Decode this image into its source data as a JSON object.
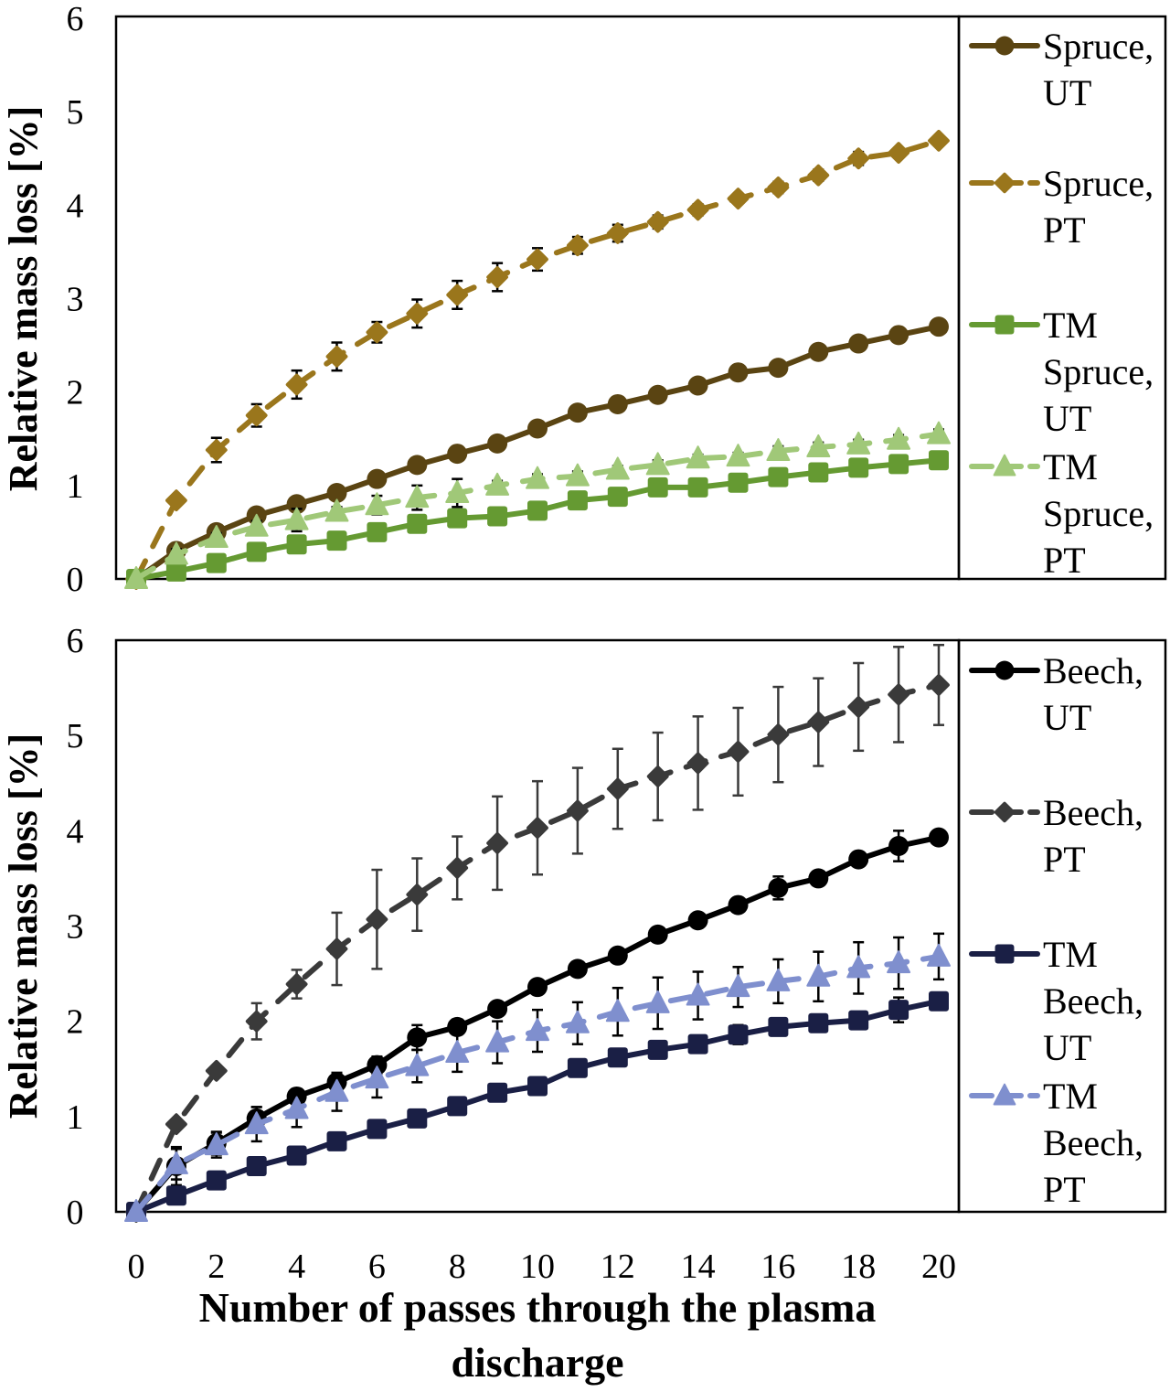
{
  "chart_data": [
    {
      "type": "line",
      "panel": "top",
      "title": "",
      "xlabel": "Number of passes through the plasma discharge",
      "ylabel": "Relative mass loss [%]",
      "xlim": [
        0,
        20
      ],
      "ylim": [
        0,
        6
      ],
      "x_ticks": [
        "0",
        "2",
        "4",
        "6",
        "8",
        "10",
        "12",
        "14",
        "16",
        "18",
        "20"
      ],
      "y_ticks": [
        "0",
        "1",
        "2",
        "3",
        "4",
        "5",
        "6"
      ],
      "grid": false,
      "legend_position": "right",
      "x": [
        0,
        1,
        2,
        3,
        4,
        5,
        6,
        7,
        8,
        9,
        10,
        11,
        12,
        13,
        14,
        15,
        16,
        17,
        18,
        19,
        20
      ],
      "series": [
        {
          "name": "Spruce, UT",
          "legend_lines": [
            "Spruce,",
            "UT"
          ],
          "color": "#5a4412",
          "marker": "circle",
          "dash": "solid",
          "values": [
            0,
            0.3,
            0.5,
            0.68,
            0.8,
            0.92,
            1.07,
            1.22,
            1.34,
            1.45,
            1.61,
            1.78,
            1.87,
            1.97,
            2.07,
            2.21,
            2.26,
            2.43,
            2.52,
            2.61,
            2.7
          ],
          "errors": [
            0,
            0.08,
            0.04,
            0.04,
            0.04,
            0.04,
            0.05,
            0.05,
            0.04,
            0.04,
            0.04,
            0.04,
            0.03,
            0.03,
            0.04,
            0.03,
            0.03,
            0.03,
            0.03,
            0.03,
            0.04
          ]
        },
        {
          "name": "Spruce, PT",
          "legend_lines": [
            "Spruce,",
            "PT"
          ],
          "color": "#9a761c",
          "marker": "diamond",
          "dash": "dashed",
          "values": [
            0,
            0.84,
            1.38,
            1.75,
            2.08,
            2.38,
            2.64,
            2.84,
            3.04,
            3.23,
            3.42,
            3.57,
            3.7,
            3.82,
            3.95,
            4.07,
            4.19,
            4.32,
            4.5,
            4.56,
            4.69
          ],
          "errors": [
            0,
            0.02,
            0.13,
            0.12,
            0.15,
            0.15,
            0.11,
            0.15,
            0.15,
            0.15,
            0.12,
            0.09,
            0.09,
            0.07,
            0.06,
            0.05,
            0.06,
            0.06,
            0.07,
            0.04,
            0.05
          ]
        },
        {
          "name": "TM Spruce, UT",
          "legend_lines": [
            "TM",
            "Spruce,",
            "UT"
          ],
          "color": "#659a32",
          "marker": "square",
          "dash": "solid",
          "values": [
            0,
            0.08,
            0.17,
            0.29,
            0.37,
            0.41,
            0.5,
            0.59,
            0.65,
            0.67,
            0.73,
            0.84,
            0.88,
            0.98,
            0.98,
            1.03,
            1.09,
            1.14,
            1.19,
            1.23,
            1.27
          ],
          "errors": [
            0,
            0.02,
            0.02,
            0.02,
            0.03,
            0.02,
            0.02,
            0.02,
            0.02,
            0.02,
            0.02,
            0.02,
            0.02,
            0.02,
            0.02,
            0.02,
            0.02,
            0.02,
            0.02,
            0.02,
            0.02
          ]
        },
        {
          "name": "TM Spruce, PT",
          "legend_lines": [
            "TM",
            "Spruce,",
            "PT"
          ],
          "color": "#a0c878",
          "marker": "triangle",
          "dash": "dashed",
          "values": [
            0,
            0.26,
            0.44,
            0.56,
            0.63,
            0.72,
            0.79,
            0.87,
            0.92,
            1.0,
            1.07,
            1.1,
            1.17,
            1.22,
            1.29,
            1.31,
            1.37,
            1.41,
            1.44,
            1.49,
            1.55
          ],
          "errors": [
            0,
            0.06,
            0.05,
            0.06,
            0.12,
            0.05,
            0.1,
            0.13,
            0.15,
            0.05,
            0.05,
            0.05,
            0.04,
            0.05,
            0.04,
            0.04,
            0.05,
            0.05,
            0.05,
            0.05,
            0.05
          ]
        }
      ]
    },
    {
      "type": "line",
      "panel": "bottom",
      "title": "",
      "xlabel": "Number of passes through the plasma discharge",
      "ylabel": "Relative mass loss [%]",
      "xlim": [
        0,
        20
      ],
      "ylim": [
        0,
        6
      ],
      "x_ticks": [
        "0",
        "2",
        "4",
        "6",
        "8",
        "10",
        "12",
        "14",
        "16",
        "18",
        "20"
      ],
      "y_ticks": [
        "0",
        "1",
        "2",
        "3",
        "4",
        "5",
        "6"
      ],
      "grid": false,
      "legend_position": "right",
      "x": [
        0,
        1,
        2,
        3,
        4,
        5,
        6,
        7,
        8,
        9,
        10,
        11,
        12,
        13,
        14,
        15,
        16,
        17,
        18,
        19,
        20
      ],
      "series": [
        {
          "name": "Beech, UT",
          "legend_lines": [
            "Beech,",
            "UT"
          ],
          "color": "#000000",
          "marker": "circle",
          "dash": "solid",
          "values": [
            0,
            0.48,
            0.72,
            0.98,
            1.21,
            1.36,
            1.54,
            1.83,
            1.94,
            2.13,
            2.36,
            2.55,
            2.69,
            2.91,
            3.06,
            3.22,
            3.4,
            3.5,
            3.7,
            3.84,
            3.93
          ],
          "errors": [
            0,
            0.2,
            0.12,
            0.12,
            0.08,
            0.08,
            0.09,
            0.13,
            0.08,
            0.05,
            0.05,
            0.05,
            0.05,
            0.05,
            0.05,
            0.05,
            0.12,
            0.05,
            0.05,
            0.16,
            0.05
          ]
        },
        {
          "name": "Beech, PT",
          "legend_lines": [
            "Beech,",
            "PT"
          ],
          "color": "#3a3a3a",
          "marker": "diamond",
          "dash": "dashed",
          "values": [
            0,
            0.92,
            1.48,
            2.0,
            2.39,
            2.76,
            3.07,
            3.33,
            3.61,
            3.87,
            4.03,
            4.21,
            4.44,
            4.57,
            4.71,
            4.83,
            5.01,
            5.14,
            5.3,
            5.43,
            5.53
          ],
          "errors": [
            0,
            0.05,
            0.05,
            0.19,
            0.15,
            0.38,
            0.52,
            0.38,
            0.33,
            0.49,
            0.49,
            0.45,
            0.42,
            0.46,
            0.49,
            0.46,
            0.5,
            0.46,
            0.46,
            0.5,
            0.42
          ]
        },
        {
          "name": "TM Beech, UT",
          "legend_lines": [
            "TM",
            "Beech,",
            "UT"
          ],
          "color": "#1a1f45",
          "marker": "square",
          "dash": "solid",
          "values": [
            0,
            0.17,
            0.33,
            0.48,
            0.59,
            0.74,
            0.87,
            0.98,
            1.11,
            1.25,
            1.32,
            1.51,
            1.62,
            1.7,
            1.76,
            1.86,
            1.94,
            1.98,
            2.01,
            2.12,
            2.21
          ],
          "errors": [
            0,
            0.02,
            0.02,
            0.02,
            0.02,
            0.02,
            0.02,
            0.02,
            0.02,
            0.02,
            0.02,
            0.02,
            0.02,
            0.02,
            0.02,
            0.1,
            0.02,
            0.02,
            0.02,
            0.13,
            0.02
          ]
        },
        {
          "name": "TM Beech, PT",
          "legend_lines": [
            "TM",
            "Beech,",
            "PT"
          ],
          "color": "#7f8fce",
          "marker": "triangle",
          "dash": "dashed",
          "values": [
            0,
            0.5,
            0.7,
            0.92,
            1.08,
            1.26,
            1.4,
            1.53,
            1.67,
            1.78,
            1.9,
            1.98,
            2.1,
            2.19,
            2.27,
            2.36,
            2.42,
            2.47,
            2.56,
            2.61,
            2.68
          ],
          "errors": [
            0,
            0.16,
            0.13,
            0.18,
            0.19,
            0.2,
            0.2,
            0.17,
            0.2,
            0.22,
            0.22,
            0.22,
            0.25,
            0.27,
            0.25,
            0.21,
            0.23,
            0.26,
            0.27,
            0.27,
            0.24
          ]
        }
      ]
    }
  ],
  "figure": {
    "xlabel_lines": [
      "Number of passes through the plasma",
      "discharge"
    ]
  }
}
